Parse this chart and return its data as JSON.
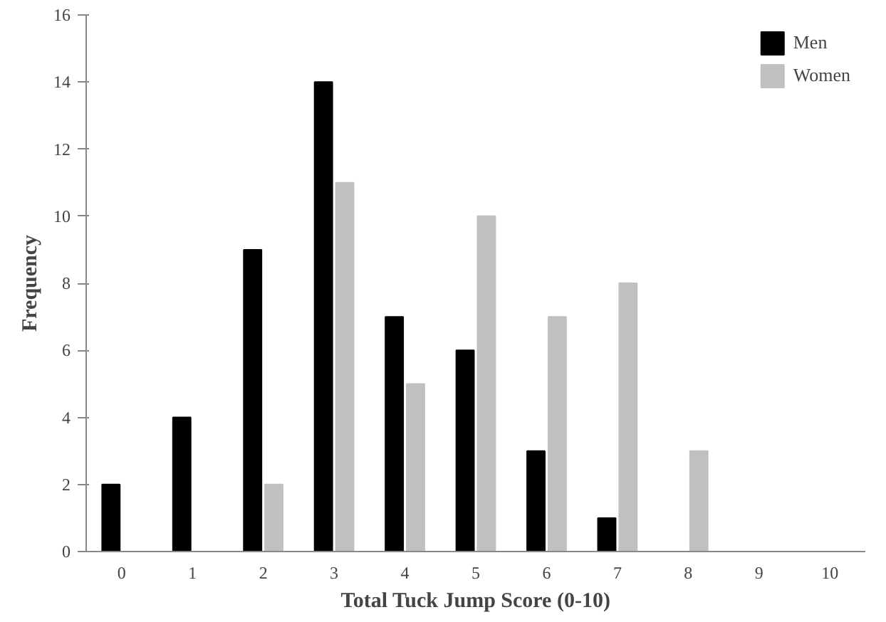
{
  "chart_data": {
    "type": "bar",
    "xlabel": "Total Tuck Jump Score (0-10)",
    "ylabel": "Frequency",
    "categories": [
      "0",
      "1",
      "2",
      "3",
      "4",
      "5",
      "6",
      "7",
      "8",
      "9",
      "10"
    ],
    "series": [
      {
        "name": "Men",
        "color": "#000000",
        "values": [
          2,
          4,
          9,
          14,
          7,
          6,
          3,
          1,
          0,
          0,
          0
        ]
      },
      {
        "name": "Women",
        "color": "#c0c0c0",
        "values": [
          0,
          0,
          2,
          11,
          5,
          10,
          7,
          8,
          3,
          0,
          0
        ]
      }
    ],
    "ylim": [
      0,
      16
    ],
    "yticks": [
      0,
      2,
      4,
      6,
      8,
      10,
      12,
      14,
      16
    ],
    "grid": false,
    "legend": "top right"
  }
}
